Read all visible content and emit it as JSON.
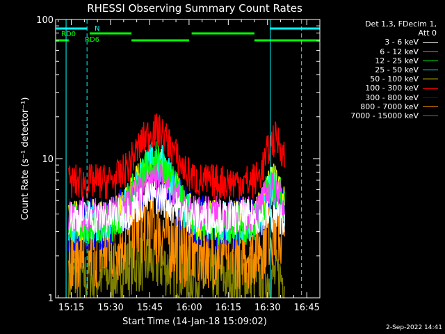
{
  "chart_data": {
    "type": "line",
    "title": "RHESSI Observing Summary Count Rates",
    "xlabel": "Start Time (14-Jan-18 15:09:02)",
    "ylabel": "Count Rate (s⁻¹ detector⁻¹)",
    "yscale": "log",
    "ylim": [
      1,
      100
    ],
    "y_ticks": [
      "1",
      "10",
      "100"
    ],
    "xlim": [
      "15:09",
      "16:50"
    ],
    "x_ticks": [
      "15:15",
      "15:30",
      "15:45",
      "16:00",
      "16:15",
      "16:30",
      "16:45"
    ],
    "x_tick_minutes": [
      15,
      30,
      45,
      60,
      75,
      90,
      105
    ],
    "x_start_minute": 9,
    "x_end_minute": 110,
    "legend_header": [
      "Det 1,3, FDecim 1,",
      "Att 0"
    ],
    "legend_position": "right",
    "series": [
      {
        "name": "3 - 6 keV",
        "color": "#ffffff",
        "approx_level": [
          2.2,
          5.5
        ]
      },
      {
        "name": "6 - 12 keV",
        "color": "#ff40ff",
        "approx_level": [
          3,
          6
        ]
      },
      {
        "name": "12 - 25 keV",
        "color": "#00ff00",
        "approx_level": [
          2.5,
          12
        ]
      },
      {
        "name": "25 - 50 keV",
        "color": "#00ffff",
        "approx_level": [
          2.5,
          12
        ]
      },
      {
        "name": "50 - 100 keV",
        "color": "#ffff00",
        "approx_level": [
          2.5,
          11
        ]
      },
      {
        "name": "100 - 300 keV",
        "color": "#ff0000",
        "approx_level": [
          5,
          19
        ]
      },
      {
        "name": "300 - 800 keV",
        "color": "#0000ff",
        "approx_level": [
          2.2,
          10
        ]
      },
      {
        "name": "800 - 7000 keV",
        "color": "#ff8c00",
        "approx_level": [
          1,
          5
        ]
      },
      {
        "name": "7000 - 15000 keV",
        "color": "#808000",
        "approx_level": [
          1,
          3
        ]
      }
    ],
    "flags": [
      {
        "name": "RD0",
        "color": "#00ff00"
      },
      {
        "name": "RD6",
        "color": "#00ff00"
      },
      {
        "name": "N",
        "color": "#00ffff"
      }
    ],
    "vertical_markers_minutes": [
      13,
      21,
      91,
      103
    ],
    "date_stamp": "2-Sep-2022 14:41"
  }
}
